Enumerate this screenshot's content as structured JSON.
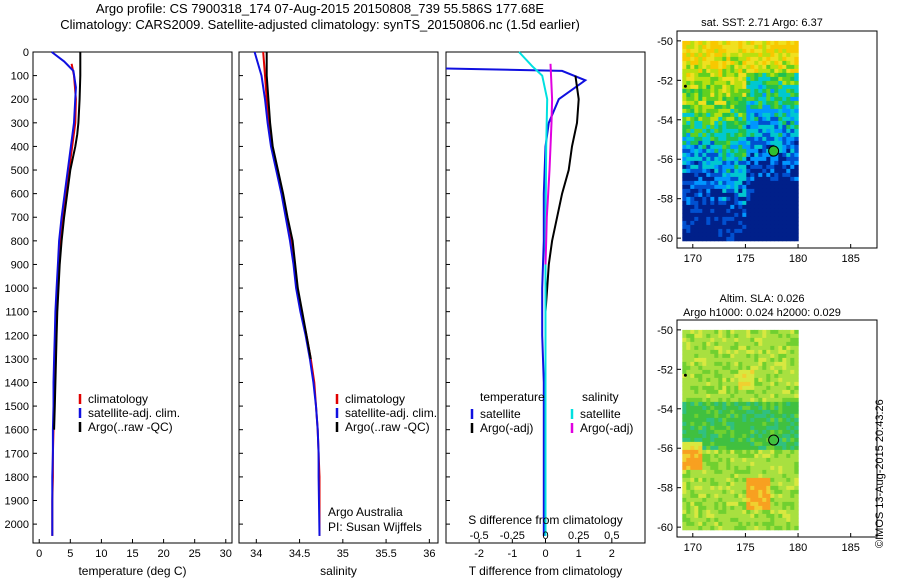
{
  "header": {
    "line1": "Argo profile: CS 7900318_174 07-Aug-2015 20150808_739 55.586S 177.68E",
    "line2": "Climatology: CARS2009. Satellite-adjusted climatology: synTS_20150806.nc (1.5d earlier)"
  },
  "colors": {
    "climatology": "#e00000",
    "satellite": "#1010e0",
    "argo": "#000000",
    "sal_satellite": "#00e0e0",
    "sal_argo": "#e000e0"
  },
  "chart_data": [
    {
      "type": "line",
      "panel": "temperature",
      "xlabel": "temperature (deg C)",
      "ylabel": "",
      "xlim": [
        -1,
        31
      ],
      "ylim": [
        2080,
        0
      ],
      "x_ticks": [
        0,
        5,
        10,
        15,
        20,
        25,
        30
      ],
      "y_ticks": [
        0,
        100,
        200,
        300,
        400,
        500,
        600,
        700,
        800,
        900,
        1000,
        1100,
        1200,
        1300,
        1400,
        1500,
        1600,
        1700,
        1800,
        1900,
        2000
      ],
      "legend": [
        "climatology",
        "satellite-adj. clim.",
        "Argo(..raw -QC)"
      ],
      "series": [
        {
          "name": "climatology",
          "color": "#e00000",
          "x": [
            5.2,
            5.6,
            5.9,
            5.8,
            5.3,
            4.8,
            4.3,
            3.8,
            3.4,
            3.1,
            2.9,
            2.7,
            2.6,
            2.5,
            2.4,
            2.3,
            2.3,
            2.2,
            2.2,
            2.1,
            2.1
          ],
          "y": [
            50,
            100,
            200,
            300,
            400,
            500,
            600,
            700,
            800,
            900,
            1000,
            1100,
            1200,
            1300,
            1400,
            1500,
            1600,
            1700,
            1800,
            1900,
            2050
          ]
        },
        {
          "name": "satellite-adj. clim.",
          "color": "#1010e0",
          "x": [
            2.0,
            4.0,
            5.5,
            5.9,
            5.6,
            5.1,
            4.6,
            4.1,
            3.6,
            3.2,
            3.0,
            2.8,
            2.6,
            2.5,
            2.4,
            2.3,
            2.3,
            2.2,
            2.2,
            2.1,
            2.1,
            2.1
          ],
          "y": [
            0,
            40,
            80,
            150,
            300,
            400,
            500,
            600,
            700,
            800,
            900,
            1000,
            1100,
            1200,
            1300,
            1400,
            1500,
            1600,
            1700,
            1800,
            1900,
            2050
          ]
        },
        {
          "name": "Argo(..raw -QC)",
          "color": "#000000",
          "x": [
            6.6,
            6.6,
            6.5,
            6.3,
            6.1,
            5.8,
            5.4,
            5.0,
            4.5,
            4.0,
            3.6,
            3.3,
            3.1,
            2.9,
            2.8,
            2.7,
            2.6,
            2.5,
            2.4
          ],
          "y": [
            0,
            100,
            200,
            300,
            350,
            400,
            450,
            500,
            600,
            700,
            800,
            900,
            1000,
            1100,
            1200,
            1300,
            1400,
            1500,
            1600
          ]
        }
      ]
    },
    {
      "type": "line",
      "panel": "salinity",
      "xlabel": "salinity",
      "xlim": [
        33.8,
        36.1
      ],
      "ylim": [
        2080,
        0
      ],
      "x_ticks": [
        34,
        34.5,
        35,
        35.5,
        36
      ],
      "legend": [
        "climatology",
        "satellite-adj. clim.",
        "Argo(..raw -QC)"
      ],
      "annotation": [
        "Argo Australia",
        "PI: Susan Wijffels"
      ],
      "series": [
        {
          "name": "climatology",
          "color": "#e00000",
          "x": [
            34.08,
            34.1,
            34.12,
            34.14,
            34.18,
            34.24,
            34.3,
            34.35,
            34.4,
            34.44,
            34.47,
            34.52,
            34.58,
            34.63,
            34.67,
            34.69,
            34.71,
            34.72,
            34.73,
            34.73
          ],
          "y": [
            0,
            100,
            200,
            300,
            400,
            500,
            600,
            700,
            800,
            900,
            1000,
            1100,
            1200,
            1300,
            1400,
            1500,
            1600,
            1700,
            1800,
            2050
          ]
        },
        {
          "name": "satellite-adj. clim.",
          "color": "#1010e0",
          "x": [
            33.98,
            34.06,
            34.1,
            34.13,
            34.17,
            34.23,
            34.29,
            34.34,
            34.39,
            34.43,
            34.46,
            34.51,
            34.57,
            34.62,
            34.66,
            34.69,
            34.71,
            34.72,
            34.72,
            34.73
          ],
          "y": [
            0,
            100,
            200,
            300,
            400,
            500,
            600,
            700,
            800,
            900,
            1000,
            1100,
            1200,
            1300,
            1400,
            1500,
            1600,
            1700,
            1800,
            2050
          ]
        },
        {
          "name": "Argo(..raw -QC)",
          "color": "#000000",
          "x": [
            34.12,
            34.12,
            34.14,
            34.16,
            34.19,
            34.25,
            34.31,
            34.36,
            34.42,
            34.45,
            34.48,
            34.53,
            34.58,
            34.63
          ],
          "y": [
            0,
            100,
            200,
            300,
            400,
            500,
            600,
            700,
            800,
            900,
            1000,
            1100,
            1200,
            1300
          ]
        }
      ]
    },
    {
      "type": "line",
      "panel": "differences",
      "xlabel": "T difference from climatology",
      "xlabel_top": "S difference from climatology",
      "xlim": [
        -3,
        3
      ],
      "ylim": [
        2080,
        0
      ],
      "x_ticks": [
        -2,
        -1,
        0,
        1,
        2
      ],
      "s_ticks": [
        -0.5,
        -0.25,
        0,
        0.25,
        0.5
      ],
      "legend_groups": [
        {
          "title": "temperature",
          "items": [
            "satellite",
            "Argo(-adj)"
          ]
        },
        {
          "title": "salinity",
          "items": [
            "satellite",
            "Argo(-adj)"
          ]
        }
      ],
      "series": [
        {
          "name": "temperature satellite",
          "color": "#1010e0",
          "x": [
            -3.0,
            0.5,
            1.2,
            0.4,
            0.1,
            0.0,
            -0.05,
            -0.05,
            -0.1,
            -0.1,
            -0.05,
            -0.05,
            -0.05,
            -0.05,
            -0.05,
            -0.05
          ],
          "y": [
            70,
            80,
            120,
            200,
            300,
            400,
            600,
            800,
            1000,
            1200,
            1400,
            1600,
            1800,
            1900,
            2000,
            2050
          ]
        },
        {
          "name": "temperature Argo(-adj)",
          "color": "#000000",
          "x": [
            0.9,
            1.0,
            0.95,
            0.8,
            0.7,
            0.5,
            0.35,
            0.2,
            0.1,
            0.05,
            0.0,
            0.0
          ],
          "y": [
            100,
            200,
            300,
            400,
            500,
            600,
            700,
            800,
            900,
            1000,
            1100,
            1200
          ]
        },
        {
          "name": "salinity satellite",
          "color": "#00e0e0",
          "x": [
            -0.8,
            -0.4,
            -0.1,
            0.05,
            0.02,
            0.01,
            0.0,
            0.0,
            0.0,
            0.0,
            0.0,
            0.0
          ],
          "y": [
            0,
            60,
            100,
            200,
            400,
            600,
            800,
            1000,
            1400,
            1800,
            2000,
            2050
          ]
        },
        {
          "name": "salinity Argo(-adj)",
          "color": "#e000e0",
          "x": [
            0.15,
            0.2,
            0.18,
            0.15,
            0.12,
            0.08,
            0.04,
            0.02,
            0.0
          ],
          "y": [
            50,
            200,
            300,
            400,
            500,
            600,
            700,
            800,
            900
          ]
        }
      ]
    },
    {
      "type": "heatmap",
      "panel": "map-sst",
      "title": "sat. SST: 2.71  Argo: 6.37",
      "xlim": [
        168.5,
        187.5
      ],
      "ylim": [
        -60.5,
        -49.5
      ],
      "x_ticks": [
        170,
        175,
        180,
        185
      ],
      "y_ticks": [
        -50,
        -52,
        -54,
        -56,
        -58,
        -60
      ],
      "marker": {
        "lon": 177.68,
        "lat": -55.586
      }
    },
    {
      "type": "heatmap",
      "panel": "map-sla",
      "title": "Altim. SLA: 0.026",
      "subtitle": "Argo h1000: 0.024  h2000: 0.029",
      "xlim": [
        168.5,
        187.5
      ],
      "ylim": [
        -60.5,
        -49.5
      ],
      "x_ticks": [
        170,
        175,
        180,
        185
      ],
      "y_ticks": [
        -50,
        -52,
        -54,
        -56,
        -58,
        -60
      ],
      "marker": {
        "lon": 177.68,
        "lat": -55.586
      }
    }
  ],
  "credit": "©IMOS 13-Aug-2015 20:43:26"
}
